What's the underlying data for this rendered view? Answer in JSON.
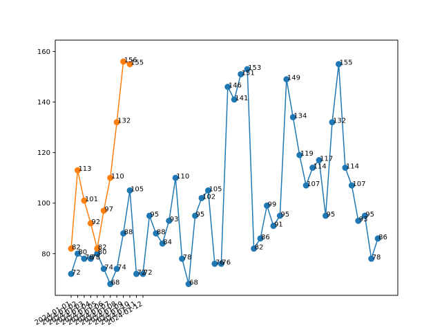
{
  "chart_data": {
    "type": "line",
    "title": "",
    "xlabel": "",
    "ylabel": "",
    "ylim": [
      63.5,
      164.5
    ],
    "yticks": [
      80,
      100,
      120,
      140,
      160
    ],
    "grid": false,
    "legend": "none",
    "x_ticks": [
      "2024-01-01",
      "2024-01-02",
      "2024-01-03",
      "2024-01-04",
      "2024-01-05",
      "2024-01-06",
      "2024-01-07",
      "2024-01-08",
      "2024-01-09",
      "2024-01-10",
      "2024-01-11",
      "2024-01-12"
    ],
    "series": [
      {
        "color": "#1f77b4",
        "values": [
          72,
          80,
          78,
          78,
          80,
          74,
          68,
          74,
          88,
          105,
          72,
          72,
          95,
          88,
          84,
          93,
          110,
          78,
          68,
          95,
          102,
          105,
          76,
          76,
          146,
          141,
          151,
          153,
          82,
          86,
          99,
          91,
          95,
          149,
          134,
          119,
          107,
          114,
          117,
          95,
          132,
          155,
          114,
          107,
          93,
          95,
          78,
          86
        ]
      },
      {
        "color": "#ff7f0e",
        "values": [
          82,
          113,
          101,
          92,
          82,
          97,
          110,
          132,
          156,
          155
        ]
      }
    ]
  }
}
